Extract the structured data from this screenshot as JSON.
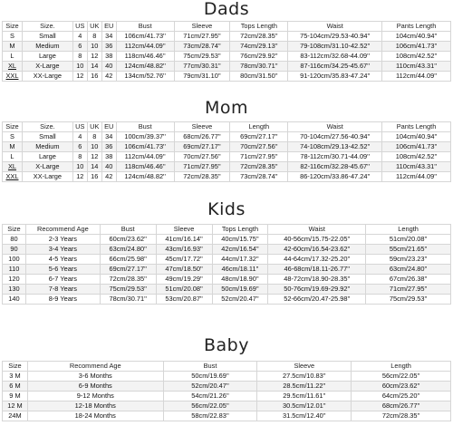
{
  "dads": {
    "title": "Dads",
    "headers": [
      "Size",
      "Size.",
      "US",
      "UK",
      "EU",
      "Bust",
      "Sleeve",
      "Tops Length",
      "Waist",
      "Pants Length"
    ],
    "rows": [
      [
        "S",
        "Small",
        "4",
        "8",
        "34",
        "106cm/41.73''",
        "71cm/27.95''",
        "72cm/28.35''",
        "75-104cm/29.53-40.94''",
        "104cm/40.94''"
      ],
      [
        "M",
        "Medium",
        "6",
        "10",
        "36",
        "112cm/44.09''",
        "73cm/28.74''",
        "74cm/29.13''",
        "79-108cm/31.10-42.52''",
        "106cm/41.73''"
      ],
      [
        "L",
        "Large",
        "8",
        "12",
        "38",
        "118cm/46.46''",
        "75cm/29.53''",
        "76cm/29.92''",
        "83-112cm/32.68-44.09''",
        "108cm/42.52''"
      ],
      [
        "XL",
        "X-Large",
        "10",
        "14",
        "40",
        "124cm/48.82''",
        "77cm/30.31''",
        "78cm/30.71''",
        "87-116cm/34.25-45.67''",
        "110cm/43.31''"
      ],
      [
        "XXL",
        "XX-Large",
        "12",
        "16",
        "42",
        "134cm/52.76''",
        "79cm/31.10''",
        "80cm/31.50''",
        "91-120cm/35.83-47.24''",
        "112cm/44.09''"
      ]
    ]
  },
  "mom": {
    "title": "Mom",
    "headers": [
      "Size",
      "Size.",
      "US",
      "UK",
      "EU",
      "Bust",
      "Sleeve",
      "Length",
      "Waist",
      "Pants Length"
    ],
    "rows": [
      [
        "S",
        "Small",
        "4",
        "8",
        "34",
        "100cm/39.37''",
        "68cm/26.77''",
        "69cm/27.17''",
        "70-104cm/27.56-40.94''",
        "104cm/40.94''"
      ],
      [
        "M",
        "Medium",
        "6",
        "10",
        "36",
        "106cm/41.73''",
        "69cm/27.17''",
        "70cm/27.56''",
        "74-108cm/29.13-42.52''",
        "106cm/41.73''"
      ],
      [
        "L",
        "Large",
        "8",
        "12",
        "38",
        "112cm/44.09''",
        "70cm/27.56''",
        "71cm/27.95''",
        "78-112cm/30.71-44.09''",
        "108cm/42.52''"
      ],
      [
        "XL",
        "X-Large",
        "10",
        "14",
        "40",
        "118cm/46.46''",
        "71cm/27.95''",
        "72cm/28.35''",
        "82-116cm/32.28-45.67''",
        "110cm/43.31''"
      ],
      [
        "XXL",
        "XX-Large",
        "12",
        "16",
        "42",
        "124cm/48.82''",
        "72cm/28.35''",
        "73cm/28.74''",
        "86-120cm/33.86-47.24''",
        "112cm/44.09''"
      ]
    ]
  },
  "kids": {
    "title": "Kids",
    "headers": [
      "Size",
      "Recommend Age",
      "Bust",
      "Sleeve",
      "Tops Length",
      "Waist",
      "Length"
    ],
    "rows": [
      [
        "80",
        "2-3 Years",
        "60cm/23.62''",
        "41cm/16.14''",
        "40cm/15.75''",
        "40-56cm/15.75-22.05''",
        "51cm/20.08''"
      ],
      [
        "90",
        "3-4 Years",
        "63cm/24.80''",
        "43cm/16.93''",
        "42cm/16.54''",
        "42-60cm/16.54-23.62''",
        "55cm/21.65''"
      ],
      [
        "100",
        "4-5 Years",
        "66cm/25.98''",
        "45cm/17.72''",
        "44cm/17.32''",
        "44-64cm/17.32-25.20''",
        "59cm/23.23''"
      ],
      [
        "110",
        "5-6 Years",
        "69cm/27.17''",
        "47cm/18.50''",
        "46cm/18.11''",
        "46-68cm/18.11-26.77''",
        "63cm/24.80''"
      ],
      [
        "120",
        "6-7 Years",
        "72cm/28.35''",
        "49cm/19.29''",
        "48cm/18.90''",
        "48-72cm/18.90-28.35''",
        "67cm/26.38''"
      ],
      [
        "130",
        "7-8 Years",
        "75cm/29.53''",
        "51cm/20.08''",
        "50cm/19.69''",
        "50-76cm/19.69-29.92''",
        "71cm/27.95''"
      ],
      [
        "140",
        "8-9 Years",
        "78cm/30.71''",
        "53cm/20.87''",
        "52cm/20.47''",
        "52-66cm/20.47-25.98''",
        "75cm/29.53''"
      ]
    ]
  },
  "baby": {
    "title": "Baby",
    "headers": [
      "Size",
      "Recommend Age",
      "Bust",
      "Sleeve",
      "Length"
    ],
    "rows": [
      [
        "3 M",
        "3-6 Months",
        "50cm/19.69''",
        "27.5cm/10.83''",
        "56cm/22.05''"
      ],
      [
        "6 M",
        "6-9 Months",
        "52cm/20.47''",
        "28.5cm/11.22''",
        "60cm/23.62''"
      ],
      [
        "9 M",
        "9-12 Months",
        "54cm/21.26''",
        "29.5cm/11.61''",
        "64cm/25.20''"
      ],
      [
        "12 M",
        "12-18 Months",
        "56cm/22.05''",
        "30.5cm/12.01''",
        "68cm/26.77''"
      ],
      [
        "24M",
        "18-24 Months",
        "58cm/22.83''",
        "31.5cm/12.40''",
        "72cm/28.35''"
      ]
    ]
  }
}
